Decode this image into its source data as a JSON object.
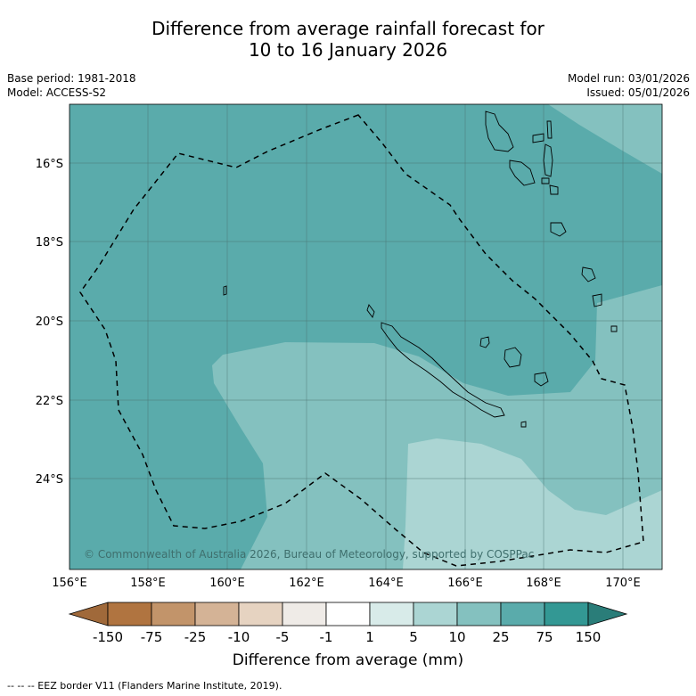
{
  "title_line1": "Difference from average rainfall forecast for",
  "title_line2": "10 to 16 January 2026",
  "meta": {
    "base_period": "Base period: 1981-2018",
    "model": "Model: ACCESS-S2",
    "model_run": "Model run: 03/01/2026",
    "issued": "Issued: 05/01/2026"
  },
  "map": {
    "lat_labels": [
      "16°S",
      "18°S",
      "20°S",
      "22°S",
      "24°S"
    ],
    "lon_labels": [
      "156°E",
      "158°E",
      "160°E",
      "162°E",
      "164°E",
      "166°E",
      "168°E",
      "170°E"
    ],
    "copyright": "© Commonwealth of Australia 2026, Bureau of Meteorology, supported by COSPPac",
    "eez_legend": "-- -- -- EEZ border V11 (Flanders Marine Institute, 2019).",
    "colors": {
      "land_outline": "#000000",
      "anomaly_10_25": "#84c1bf",
      "anomaly_25_75": "#5aabab",
      "anomaly_5_10": "#abd5d3"
    }
  },
  "colorbar": {
    "label": "Difference from average (mm)",
    "ticks": [
      "-150",
      "-75",
      "-25",
      "-10",
      "-5",
      "-1",
      "1",
      "5",
      "10",
      "25",
      "75",
      "150"
    ],
    "colors": [
      "#a0693a",
      "#b07440",
      "#c2946a",
      "#d4b396",
      "#e6d3c1",
      "#efebe7",
      "#ffffff",
      "#d8ebe9",
      "#abd5d3",
      "#84c1bf",
      "#5aabab",
      "#339894",
      "#2a7d79"
    ]
  }
}
